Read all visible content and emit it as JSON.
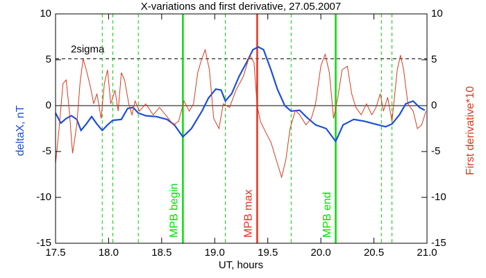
{
  "chart_data": {
    "type": "line",
    "title": "X-variations and first derivative, 27.05.2007",
    "xlabel": "UT, hours",
    "ylabel": "deltaX, nT",
    "y2label": "First derivative*10",
    "xlim": [
      17.5,
      21.0
    ],
    "xticks": [
      17.5,
      {
        "value": 18,
        "label": "18.0"
      },
      18.5,
      {
        "value": 19,
        "label": "19.0"
      },
      19.5,
      {
        "value": 20,
        "label": "20.0"
      },
      20.5,
      {
        "value": 21,
        "label": "21.0"
      }
    ],
    "ylim": [
      -15,
      10
    ],
    "yticks": [
      -15,
      -10,
      -5,
      0,
      5,
      10
    ],
    "y2lim": [
      -15,
      10
    ],
    "y2ticks": [
      -15,
      -10,
      -5,
      0,
      5,
      10
    ],
    "hlines": [
      {
        "value": 0,
        "style": "solid",
        "color": "#000000"
      },
      {
        "value": 5.1,
        "style": "dashed",
        "color": "#000000",
        "label": "2sigma"
      }
    ],
    "vlines": [
      {
        "x": 17.94,
        "style": "dashed",
        "color": "#00d000"
      },
      {
        "x": 18.04,
        "style": "dashed",
        "color": "#00d000"
      },
      {
        "x": 18.28,
        "style": "dashed",
        "color": "#00d000"
      },
      {
        "x": 18.7,
        "style": "solid",
        "color": "#00e000",
        "label": "MPB begin"
      },
      {
        "x": 19.1,
        "style": "dashed",
        "color": "#00d000"
      },
      {
        "x": 19.4,
        "style": "solid",
        "color": "#e8301c",
        "label": "MPB max"
      },
      {
        "x": 19.72,
        "style": "dashed",
        "color": "#00d000"
      },
      {
        "x": 20.14,
        "style": "solid",
        "color": "#00e000",
        "label": "MPB end"
      },
      {
        "x": 20.57,
        "style": "dashed",
        "color": "#00d000"
      },
      {
        "x": 20.67,
        "style": "dashed",
        "color": "#00d000"
      }
    ],
    "series": [
      {
        "color": "#1c4fd8",
        "width": 2.2,
        "x": [
          17.5,
          17.55,
          17.6,
          17.65,
          17.7,
          17.74,
          17.79,
          17.84,
          17.89,
          17.94,
          17.99,
          18.04,
          18.12,
          18.18,
          18.23,
          18.28,
          18.35,
          18.45,
          18.55,
          18.62,
          18.7,
          18.78,
          18.88,
          18.94,
          19.01,
          19.06,
          19.1,
          19.16,
          19.23,
          19.3,
          19.36,
          19.41,
          19.46,
          19.53,
          19.59,
          19.66,
          19.72,
          19.8,
          19.86,
          19.95,
          20.05,
          20.14,
          20.21,
          20.31,
          20.41,
          20.51,
          20.61,
          20.67,
          20.74,
          20.8,
          20.87,
          20.93,
          20.98
        ],
        "values": [
          -0.8,
          -1.9,
          -1.4,
          -1.1,
          -1.5,
          -2.7,
          -2.0,
          -1.2,
          -2.0,
          -2.7,
          -2.1,
          -1.6,
          -1.5,
          -0.3,
          -0.2,
          -0.8,
          -1.1,
          -1.2,
          -1.5,
          -2.1,
          -3.4,
          -2.5,
          -0.6,
          0.8,
          1.8,
          1.7,
          0.5,
          1.3,
          3.2,
          4.7,
          6.1,
          6.4,
          6.1,
          3.9,
          1.8,
          0.0,
          -0.6,
          -0.5,
          -1.2,
          -2.1,
          -2.5,
          -3.9,
          -2.1,
          -1.5,
          -1.7,
          -2.0,
          -2.3,
          -2.0,
          -1.0,
          0.2,
          0.5,
          -0.2,
          -0.5
        ]
      },
      {
        "color": "#d83a1c",
        "width": 1,
        "axis": "y2",
        "x": [
          17.5,
          17.53,
          17.57,
          17.6,
          17.63,
          17.66,
          17.7,
          17.73,
          17.76,
          17.79,
          17.83,
          17.86,
          17.89,
          17.93,
          17.96,
          17.99,
          18.02,
          18.06,
          18.09,
          18.12,
          18.15,
          18.19,
          18.22,
          18.25,
          18.29,
          18.35,
          18.42,
          18.48,
          18.55,
          18.61,
          18.66,
          18.71,
          18.76,
          18.8,
          18.84,
          18.87,
          18.91,
          18.95,
          18.99,
          19.04,
          19.08,
          19.14,
          19.2,
          19.27,
          19.33,
          19.37,
          19.4,
          19.43,
          19.48,
          19.53,
          19.58,
          19.63,
          19.67,
          19.71,
          19.76,
          19.8,
          19.86,
          19.91,
          19.95,
          20.0,
          20.04,
          20.08,
          20.12,
          20.16,
          20.2,
          20.25,
          20.29,
          20.33,
          20.38,
          20.43,
          20.48,
          20.52,
          20.56,
          20.59,
          20.63,
          20.67,
          20.72,
          20.75,
          20.78,
          20.82,
          20.87,
          20.91,
          20.95,
          20.99
        ],
        "values": [
          -6.3,
          -2.9,
          2.4,
          2.8,
          -0.6,
          -5.2,
          -2.1,
          2.4,
          5.1,
          3.9,
          2.0,
          0.2,
          1.3,
          -1.4,
          2.4,
          3.9,
          0.2,
          1.7,
          -0.6,
          3.6,
          2.8,
          0.2,
          -1.0,
          0.5,
          -0.6,
          0.2,
          -1.0,
          -0.2,
          -1.2,
          -2.1,
          -1.7,
          0.5,
          -0.6,
          0.2,
          3.6,
          4.8,
          6.1,
          3.9,
          -1.4,
          -2.5,
          0.2,
          -0.2,
          1.7,
          3.2,
          5.5,
          4.7,
          0.0,
          -1.7,
          -2.9,
          -4.0,
          -5.9,
          -7.8,
          -5.9,
          -2.5,
          -0.5,
          -1.0,
          -2.1,
          -1.4,
          0.2,
          4.3,
          5.6,
          3.6,
          -1.4,
          0.9,
          3.9,
          4.3,
          1.3,
          -0.2,
          -1.0,
          0.2,
          -1.0,
          -0.2,
          1.3,
          -0.6,
          0.9,
          -1.7,
          3.9,
          5.5,
          3.9,
          0.2,
          -0.6,
          -2.5,
          -2.1,
          -0.6
        ]
      }
    ]
  }
}
